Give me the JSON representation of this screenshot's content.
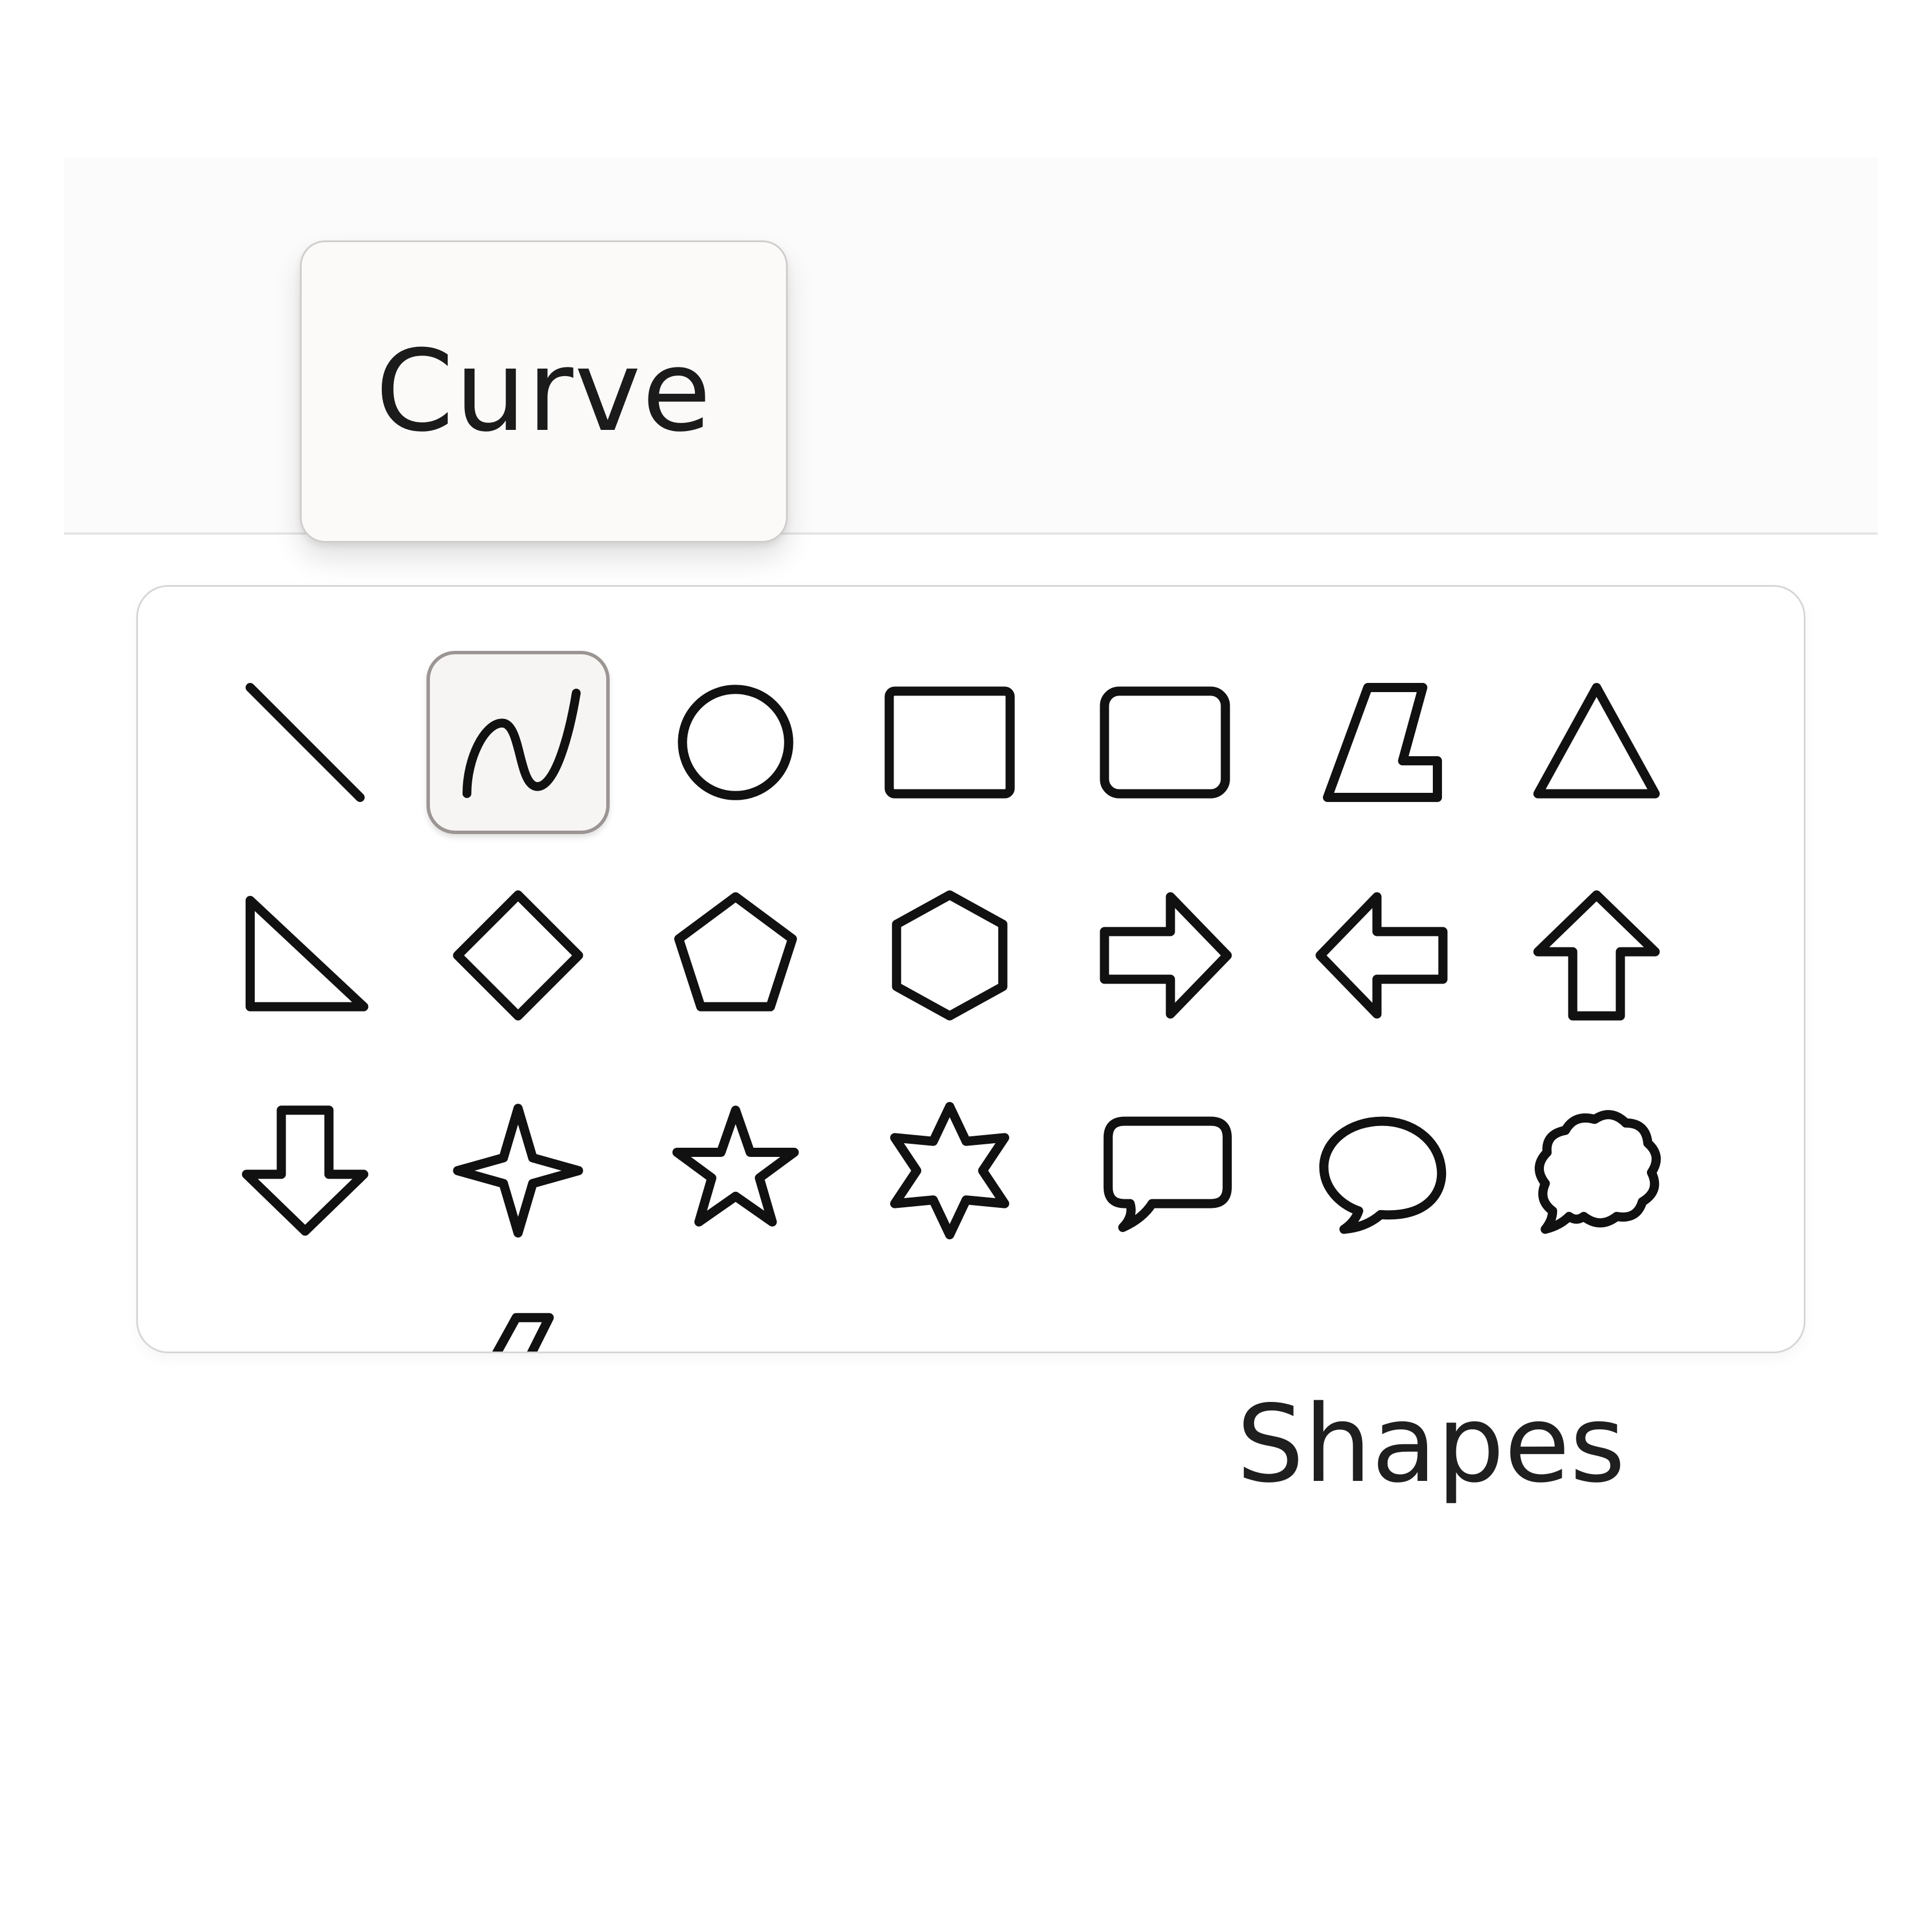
{
  "tooltip": {
    "text": "Curve"
  },
  "shapes_group": {
    "label": "Shapes",
    "selected": "curve",
    "items": [
      {
        "id": "line",
        "icon": "line-icon"
      },
      {
        "id": "curve",
        "icon": "curve-icon"
      },
      {
        "id": "oval",
        "icon": "oval-icon"
      },
      {
        "id": "rectangle",
        "icon": "rectangle-icon"
      },
      {
        "id": "rounded-rectangle",
        "icon": "rounded-rectangle-icon"
      },
      {
        "id": "polygon",
        "icon": "polygon-icon"
      },
      {
        "id": "triangle",
        "icon": "triangle-icon"
      },
      {
        "id": "right-triangle",
        "icon": "right-triangle-icon"
      },
      {
        "id": "diamond",
        "icon": "diamond-icon"
      },
      {
        "id": "pentagon",
        "icon": "pentagon-icon"
      },
      {
        "id": "hexagon",
        "icon": "hexagon-icon"
      },
      {
        "id": "right-arrow",
        "icon": "right-arrow-icon"
      },
      {
        "id": "left-arrow",
        "icon": "left-arrow-icon"
      },
      {
        "id": "up-arrow",
        "icon": "up-arrow-icon"
      },
      {
        "id": "down-arrow",
        "icon": "down-arrow-icon"
      },
      {
        "id": "four-point-star",
        "icon": "four-point-star-icon"
      },
      {
        "id": "five-point-star",
        "icon": "five-point-star-icon"
      },
      {
        "id": "six-point-star",
        "icon": "six-point-star-icon"
      },
      {
        "id": "rounded-rectangular-callout",
        "icon": "rounded-callout-icon"
      },
      {
        "id": "oval-callout",
        "icon": "oval-callout-icon"
      },
      {
        "id": "cloud-callout",
        "icon": "cloud-callout-icon"
      },
      {
        "id": "heart",
        "icon": "heart-icon"
      },
      {
        "id": "lightning",
        "icon": "lightning-icon"
      }
    ]
  },
  "colors": {
    "stroke": "#111111",
    "selected_border": "#9b9593",
    "tooltip_border": "#cfcdcb"
  }
}
